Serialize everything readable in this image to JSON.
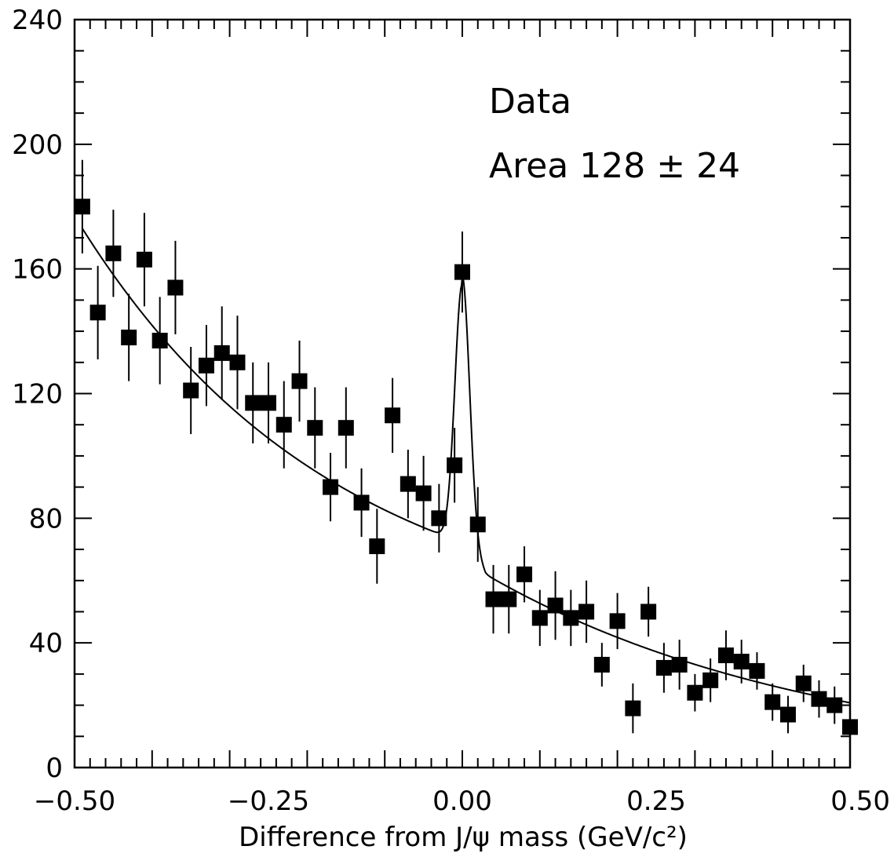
{
  "chart_data": {
    "type": "scatter",
    "xlabel": "Difference from J/ψ mass (GeV/c²)",
    "ylabel": "",
    "xlim": [
      -0.5,
      0.5
    ],
    "ylim": [
      0,
      240
    ],
    "x_ticks": [
      "−0.50",
      "−0.25",
      "0.00",
      "0.25",
      "0.50"
    ],
    "y_ticks": [
      "0",
      "40",
      "80",
      "120",
      "160",
      "200",
      "240"
    ],
    "annotations": [
      "Data",
      "Area 128 ± 24"
    ],
    "series": [
      {
        "type": "scatter_errorbars",
        "x": [
          -0.49,
          -0.47,
          -0.45,
          -0.43,
          -0.41,
          -0.39,
          -0.37,
          -0.35,
          -0.33,
          -0.31,
          -0.29,
          -0.27,
          -0.25,
          -0.23,
          -0.21,
          -0.19,
          -0.17,
          -0.15,
          -0.13,
          -0.11,
          -0.09,
          -0.07,
          -0.05,
          -0.03,
          -0.01,
          0.0,
          0.02,
          0.04,
          0.06,
          0.08,
          0.1,
          0.12,
          0.14,
          0.16,
          0.18,
          0.2,
          0.22,
          0.24,
          0.26,
          0.28,
          0.3,
          0.32,
          0.34,
          0.36,
          0.38,
          0.4,
          0.42,
          0.44,
          0.46,
          0.48,
          0.5
        ],
        "y": [
          180,
          146,
          165,
          138,
          163,
          137,
          154,
          121,
          129,
          133,
          130,
          117,
          117,
          110,
          124,
          109,
          90,
          109,
          85,
          71,
          113,
          91,
          88,
          80,
          97,
          159,
          78,
          54,
          54,
          62,
          48,
          52,
          48,
          50,
          33,
          47,
          19,
          50,
          32,
          33,
          24,
          28,
          36,
          34,
          31,
          21,
          17,
          27,
          22,
          20,
          13
        ],
        "yerr": [
          15,
          15,
          14,
          14,
          15,
          14,
          15,
          14,
          13,
          15,
          15,
          13,
          13,
          14,
          13,
          13,
          11,
          13,
          11,
          12,
          12,
          11,
          12,
          11,
          12,
          13,
          12,
          11,
          11,
          9,
          9,
          11,
          9,
          10,
          7,
          9,
          8,
          8,
          8,
          8,
          6,
          7,
          8,
          7,
          6,
          6,
          6,
          6,
          6,
          6,
          6
        ]
      },
      {
        "type": "fit_curve",
        "background": {
          "a": 125,
          "b": 0.325
        },
        "peak": {
          "center": 0.0,
          "height": 83,
          "sigma": 0.0095
        }
      }
    ]
  }
}
